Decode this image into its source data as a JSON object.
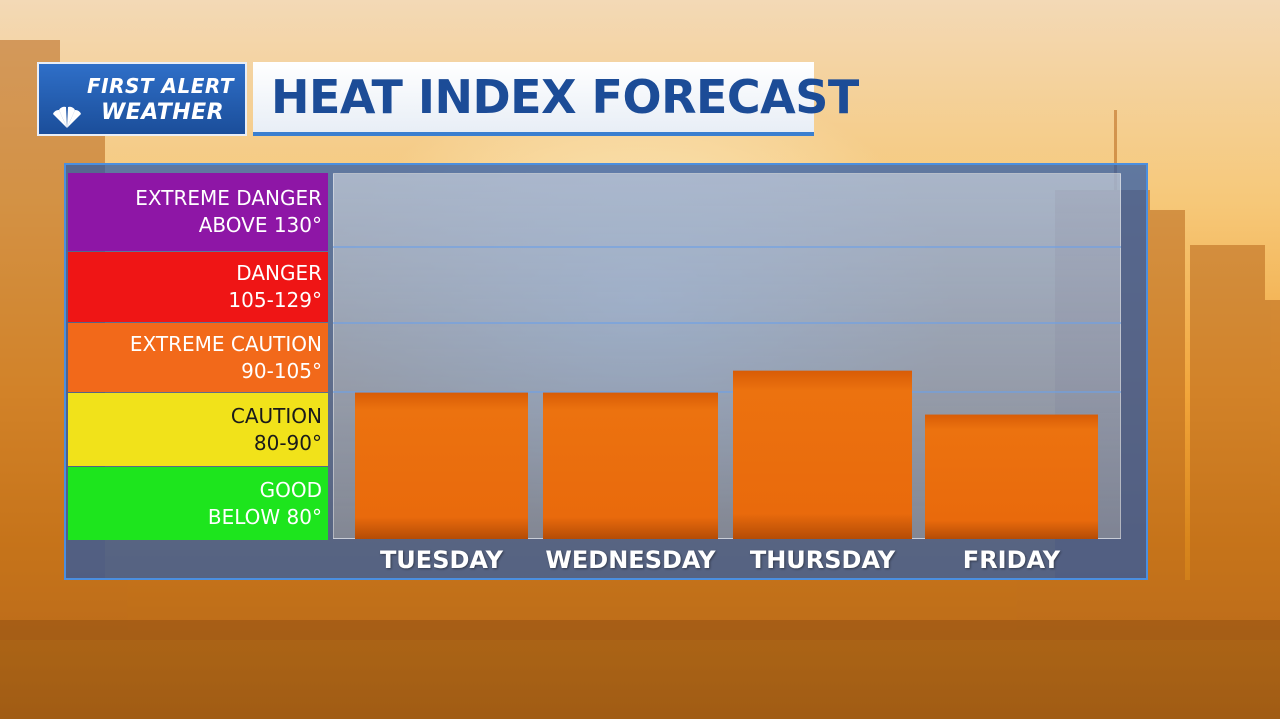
{
  "logo": {
    "line1": "FIRST ALERT",
    "line2": "WEATHER"
  },
  "title": "HEAT INDEX FORECAST",
  "legend": [
    {
      "name": "EXTREME DANGER",
      "range": "ABOVE 130°",
      "color": "#8e16a6"
    },
    {
      "name": "DANGER",
      "range": "105-129°",
      "color": "#ef1515"
    },
    {
      "name": "EXTREME CAUTION",
      "range": "90-105°",
      "color": "#f2691a"
    },
    {
      "name": "CAUTION",
      "range": "80-90°",
      "color": "#f1e21a",
      "dark_text": true
    },
    {
      "name": "GOOD",
      "range": "BELOW 80°",
      "color": "#1de51d"
    }
  ],
  "chart_data": {
    "type": "bar",
    "categories": [
      "TUESDAY",
      "WEDNESDAY",
      "THURSDAY",
      "FRIDAY"
    ],
    "values": [
      100,
      100,
      103,
      97
    ],
    "ylim": [
      80,
      130
    ],
    "grid": true,
    "bar_color": "#e8680e"
  }
}
